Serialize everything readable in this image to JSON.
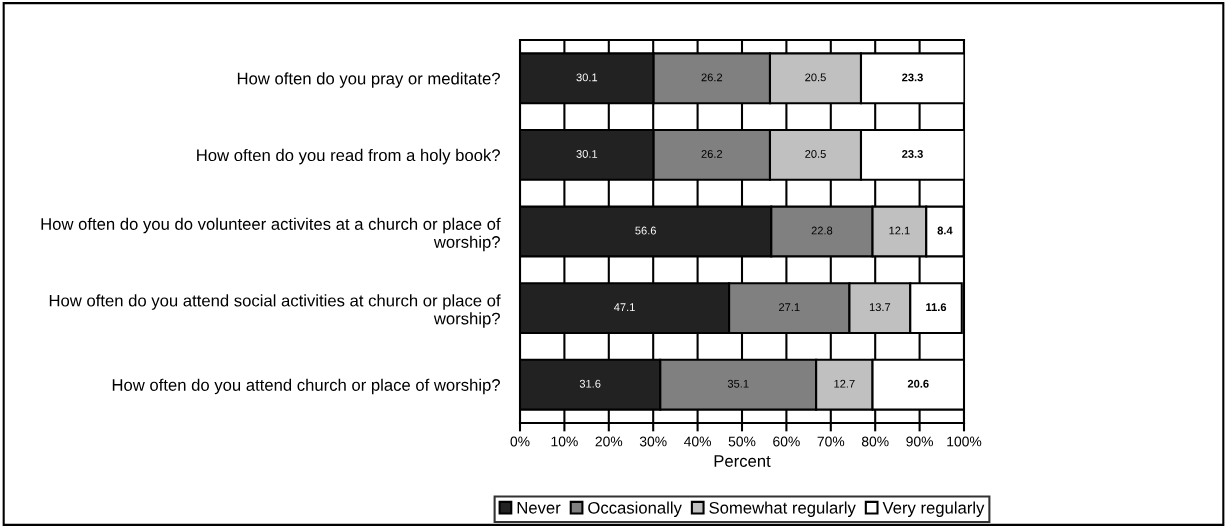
{
  "chart_data": {
    "type": "bar",
    "orientation": "horizontal",
    "stacked": true,
    "xlabel": "Percent",
    "categories": [
      "How often do you pray or meditate?",
      "How often do you read from a holy book?",
      "How often do you do volunteer activites at a church or place of worship?",
      "How often do you attend social activities at church or place of worship?",
      "How often do you attend church or place of worship?"
    ],
    "series": [
      {
        "name": "Never",
        "color": "#222222",
        "values": [
          30.1,
          30.1,
          56.6,
          47.1,
          31.6
        ]
      },
      {
        "name": "Occasionally",
        "color": "#808080",
        "values": [
          26.2,
          26.2,
          22.8,
          27.1,
          35.1
        ]
      },
      {
        "name": "Somewhat regularly",
        "color": "#c0c0c0",
        "values": [
          20.5,
          20.5,
          12.1,
          13.7,
          12.7
        ]
      },
      {
        "name": "Very regularly",
        "color": "#ffffff",
        "values": [
          23.3,
          23.3,
          8.4,
          11.6,
          20.6
        ]
      }
    ],
    "xlim": [
      0,
      100
    ],
    "xticks": [
      {
        "value": 0,
        "label": "0%"
      },
      {
        "value": 10,
        "label": "10%"
      },
      {
        "value": 20,
        "label": "20%"
      },
      {
        "value": 30,
        "label": "30%"
      },
      {
        "value": 40,
        "label": "40%"
      },
      {
        "value": 50,
        "label": "50%"
      },
      {
        "value": 60,
        "label": "60%"
      },
      {
        "value": 70,
        "label": "70%"
      },
      {
        "value": 80,
        "label": "80%"
      },
      {
        "value": 90,
        "label": "90%"
      },
      {
        "value": 100,
        "label": "100%"
      }
    ],
    "grid": "x",
    "legend": "bottom",
    "data_labels": true
  }
}
